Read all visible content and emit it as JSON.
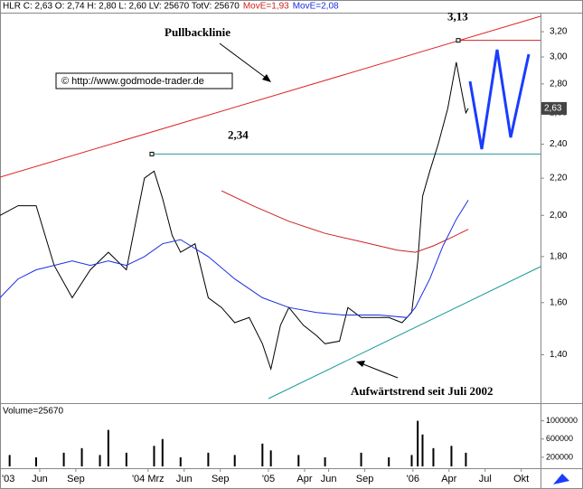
{
  "header": {
    "text": "HLR C: 2,63 O: 2,74 H: 2,80 L: 2,60 LV: 25670 TotV: 25670"
  },
  "annotations": {
    "pullback": "Pullbacklinie",
    "uptrend": "Aufwärtstrend seit Juli 2002",
    "copyright": "© http://www.godmode-trader.de"
  },
  "chart_data": [
    {
      "type": "line",
      "log_scale": true,
      "xlim": [
        1.7,
        46.6
      ],
      "ylim": [
        1.24,
        3.36
      ],
      "xticks": [
        {
          "value": 0,
          "label": "'03"
        },
        {
          "value": 5,
          "label": "Jun"
        },
        {
          "value": 8,
          "label": "Sep"
        },
        {
          "value": 14,
          "label": "'04 Mrz"
        },
        {
          "value": 17,
          "label": "Jun"
        },
        {
          "value": 20,
          "label": "Sep"
        },
        {
          "value": 24,
          "label": "'05"
        },
        {
          "value": 27,
          "label": "Apr"
        },
        {
          "value": 29,
          "label": "Jun"
        },
        {
          "value": 32,
          "label": "Sep"
        },
        {
          "value": 36,
          "label": "'06"
        },
        {
          "value": 39,
          "label": "Apr"
        },
        {
          "value": 42,
          "label": "Jul"
        },
        {
          "value": 45,
          "label": "Okt"
        }
      ],
      "yticks": [
        {
          "value": 1.4,
          "label": "1,40"
        },
        {
          "value": 1.6,
          "label": "1,60"
        },
        {
          "value": 1.8,
          "label": "1,80"
        },
        {
          "value": 2.0,
          "label": "2,00"
        },
        {
          "value": 2.2,
          "label": "2,20"
        },
        {
          "value": 2.4,
          "label": "2,40"
        },
        {
          "value": 2.6,
          "label": "2,60"
        },
        {
          "value": 2.8,
          "label": "2,80"
        },
        {
          "value": 3.0,
          "label": "3,00"
        },
        {
          "value": 3.2,
          "label": "3,20"
        }
      ],
      "series": [
        {
          "name": "HLR",
          "color": "#000000",
          "x": [
            1.7,
            3.2,
            4.7,
            6.2,
            7.7,
            9.2,
            10.7,
            12.2,
            13.7,
            14.5,
            15.2,
            16,
            16.7,
            17.9,
            19,
            20.1,
            21.2,
            22.4,
            23.5,
            24.2,
            25,
            25.7,
            26.9,
            28,
            28.7,
            29.9,
            30.6,
            31.7,
            32.9,
            34,
            35.1,
            35.9,
            36.4,
            36.8,
            37.4,
            38.1,
            38.9,
            39.6,
            40,
            40.4,
            40.6
          ],
          "values": [
            2.0,
            2.05,
            2.05,
            1.76,
            1.62,
            1.74,
            1.82,
            1.74,
            2.2,
            2.24,
            2.09,
            1.9,
            1.82,
            1.86,
            1.62,
            1.58,
            1.52,
            1.54,
            1.44,
            1.35,
            1.51,
            1.58,
            1.51,
            1.47,
            1.44,
            1.45,
            1.58,
            1.54,
            1.54,
            1.54,
            1.52,
            1.56,
            1.78,
            2.1,
            2.24,
            2.4,
            2.63,
            2.96,
            2.77,
            2.6,
            2.63
          ]
        },
        {
          "name": "MovE=1,93",
          "color": "#cc2222",
          "x": [
            20.1,
            22.7,
            25.7,
            28.7,
            31.7,
            34.7,
            36.2,
            37.7,
            39.2,
            40.6
          ],
          "values": [
            2.13,
            2.05,
            1.97,
            1.91,
            1.87,
            1.83,
            1.82,
            1.85,
            1.89,
            1.93
          ]
        },
        {
          "name": "MovE=2,08",
          "color": "#1a2ee0",
          "x": [
            1.7,
            3.2,
            4.7,
            6.2,
            7.7,
            9.2,
            10.7,
            12.2,
            13.7,
            15.2,
            16.7,
            19,
            21.2,
            23.5,
            25.7,
            28,
            30.2,
            33.2,
            35.5,
            36.2,
            37.4,
            38.5,
            39.6,
            40.6
          ],
          "values": [
            1.62,
            1.7,
            1.74,
            1.76,
            1.78,
            1.76,
            1.78,
            1.76,
            1.8,
            1.86,
            1.88,
            1.8,
            1.7,
            1.62,
            1.58,
            1.56,
            1.55,
            1.55,
            1.54,
            1.58,
            1.7,
            1.85,
            1.98,
            2.08
          ]
        }
      ],
      "levels": [
        {
          "value": 2.34,
          "label": "2,34",
          "color": "#2a9a9a"
        },
        {
          "value": 3.13,
          "label": "3,13",
          "color": "#cc2222"
        }
      ],
      "last_label": {
        "value": 2.63,
        "label": "2,63"
      }
    },
    {
      "type": "bar",
      "title": "Volume=25670",
      "color": "#000000",
      "xlim": [
        1.7,
        46.6
      ],
      "ylim": [
        0,
        1110000
      ],
      "yticks": [
        200000,
        600000,
        1000000
      ],
      "x": [
        2.5,
        4.7,
        7,
        8.5,
        10,
        10.7,
        12.2,
        14.5,
        15.2,
        16.7,
        19,
        21.2,
        23.5,
        24.2,
        26.5,
        28.7,
        31.7,
        34,
        35.9,
        36.4,
        36.8,
        37.7,
        39.2,
        40.4
      ],
      "values": [
        250000,
        200000,
        300000,
        400000,
        250000,
        800000,
        300000,
        450000,
        600000,
        200000,
        300000,
        250000,
        500000,
        350000,
        250000,
        200000,
        300000,
        200000,
        250000,
        1000000,
        700000,
        400000,
        450000,
        300000
      ]
    }
  ]
}
